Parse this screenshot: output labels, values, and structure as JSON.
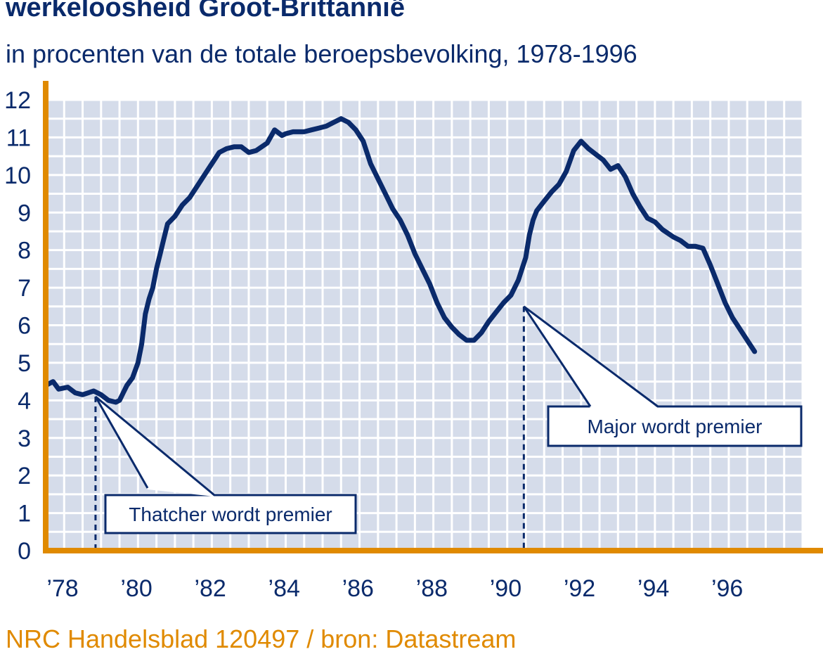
{
  "title": "werkeloosheid Groot-Brittannië",
  "subtitle": "in procenten van de totale beroepsbevolking, 1978-1996",
  "source": "NRC Handelsblad 120497 / bron: Datastream",
  "colors": {
    "line": "#0a2a6b",
    "axis": "#e08a00",
    "plot_bg": "#d5dcea",
    "grid": "#ffffff",
    "text": "#0a2a6b"
  },
  "chart_data": {
    "type": "line",
    "title": "werkeloosheid Groot-Brittannië",
    "subtitle": "in procenten van de totale beroepsbevolking, 1978-1996",
    "xlabel": "",
    "ylabel": "",
    "xlim": [
      1978,
      1998.5
    ],
    "ylim": [
      0,
      12
    ],
    "grid": true,
    "x_tick_labels": [
      "’78",
      "’80",
      "’82",
      "’84",
      "’86",
      "’88",
      "’90",
      "’92",
      "’94",
      "’96"
    ],
    "x_tick_values": [
      1978,
      1980,
      1982,
      1984,
      1986,
      1988,
      1990,
      1992,
      1994,
      1996
    ],
    "y_tick_labels": [
      "0",
      "1",
      "2",
      "3",
      "4",
      "5",
      "6",
      "7",
      "8",
      "9",
      "10",
      "11",
      "12"
    ],
    "y_tick_values": [
      0,
      1,
      2,
      3,
      4,
      5,
      6,
      7,
      8,
      9,
      10,
      11,
      12
    ],
    "series": [
      {
        "x": [
          1978.0,
          1978.2,
          1978.35,
          1978.6,
          1978.8,
          1979.0,
          1979.3,
          1979.5,
          1979.7,
          1979.9,
          1980.0,
          1980.1,
          1980.2,
          1980.35,
          1980.5,
          1980.6,
          1980.7,
          1980.8,
          1980.9,
          1981.0,
          1981.1,
          1981.2,
          1981.3,
          1981.5,
          1981.7,
          1981.9,
          1982.1,
          1982.3,
          1982.5,
          1982.7,
          1982.9,
          1983.1,
          1983.3,
          1983.5,
          1983.7,
          1984.0,
          1984.2,
          1984.4,
          1984.5,
          1984.7,
          1985.0,
          1985.2,
          1985.4,
          1985.6,
          1985.8,
          1986.0,
          1986.2,
          1986.4,
          1986.6,
          1986.8,
          1987.0,
          1987.2,
          1987.4,
          1987.6,
          1987.8,
          1988.0,
          1988.2,
          1988.4,
          1988.6,
          1988.8,
          1989.0,
          1989.2,
          1989.4,
          1989.6,
          1989.8,
          1990.0,
          1990.2,
          1990.4,
          1990.6,
          1990.8,
          1990.9,
          1991.0,
          1991.1,
          1991.2,
          1991.3,
          1991.5,
          1991.7,
          1991.9,
          1992.1,
          1992.3,
          1992.5,
          1992.7,
          1992.9,
          1993.1,
          1993.3,
          1993.5,
          1993.7,
          1993.9,
          1994.1,
          1994.3,
          1994.5,
          1994.7,
          1995.0,
          1995.2,
          1995.4,
          1995.6,
          1995.8,
          1996.0,
          1996.2,
          1996.4,
          1996.6,
          1996.8,
          1997.0,
          1997.2
        ],
        "y": [
          4.4,
          4.5,
          4.3,
          4.35,
          4.2,
          4.15,
          4.25,
          4.15,
          4.0,
          3.95,
          4.0,
          4.2,
          4.4,
          4.6,
          5.0,
          5.5,
          6.3,
          6.7,
          7.0,
          7.5,
          7.9,
          8.3,
          8.7,
          8.9,
          9.2,
          9.4,
          9.7,
          10.0,
          10.3,
          10.6,
          10.7,
          10.75,
          10.75,
          10.6,
          10.65,
          10.85,
          11.2,
          11.05,
          11.1,
          11.15,
          11.15,
          11.2,
          11.25,
          11.3,
          11.4,
          11.5,
          11.4,
          11.2,
          10.9,
          10.3,
          9.9,
          9.5,
          9.1,
          8.8,
          8.4,
          7.9,
          7.5,
          7.1,
          6.6,
          6.2,
          5.95,
          5.75,
          5.6,
          5.6,
          5.8,
          6.1,
          6.35,
          6.6,
          6.8,
          7.2,
          7.5,
          7.8,
          8.4,
          8.8,
          9.05,
          9.3,
          9.55,
          9.75,
          10.1,
          10.65,
          10.9,
          10.7,
          10.55,
          10.4,
          10.15,
          10.25,
          9.95,
          9.5,
          9.15,
          8.85,
          8.75,
          8.55,
          8.35,
          8.25,
          8.1,
          8.1,
          8.05,
          7.6,
          7.1,
          6.6,
          6.2,
          5.9,
          5.6,
          5.3
        ]
      }
    ],
    "annotations": [
      {
        "text": "Thatcher wordt premier",
        "x": 1979.35,
        "y": 4.1
      },
      {
        "text": "Major wordt premier",
        "x": 1990.95,
        "y": 6.5
      }
    ]
  }
}
